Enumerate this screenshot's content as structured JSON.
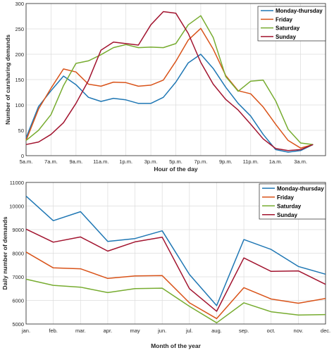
{
  "chart_data": [
    {
      "type": "line",
      "title": "",
      "xlabel": "Hour of the day",
      "ylabel": "Number of carsharing demands",
      "ylim": [
        0,
        300
      ],
      "yticks": [
        0,
        50,
        100,
        150,
        200,
        250,
        300
      ],
      "xticks": [
        "5a.m.",
        "7a.m.",
        "9a.m.",
        "11a.m.",
        "1p.m.",
        "3p.m.",
        "5p.m.",
        "7p.m.",
        "9p.m.",
        "11p.m.",
        "1a.m.",
        "3a.m."
      ],
      "x": [
        5,
        6,
        7,
        8,
        9,
        10,
        11,
        12,
        13,
        14,
        15,
        16,
        17,
        18,
        19,
        20,
        21,
        22,
        23,
        24,
        25,
        26,
        27,
        28
      ],
      "grid": true,
      "legend_position": "top-right",
      "series": [
        {
          "name": "Monday-thursday",
          "color": "#1f77b4",
          "values": [
            35,
            97,
            128,
            157,
            140,
            115,
            107,
            113,
            110,
            103,
            103,
            115,
            145,
            183,
            200,
            172,
            135,
            103,
            78,
            42,
            12,
            7,
            10,
            22
          ]
        },
        {
          "name": "Friday",
          "color": "#d95319",
          "values": [
            30,
            92,
            133,
            171,
            165,
            141,
            137,
            145,
            144,
            137,
            139,
            149,
            186,
            228,
            251,
            210,
            158,
            128,
            122,
            96,
            62,
            30,
            15,
            22
          ]
        },
        {
          "name": "Saturday",
          "color": "#77ac30",
          "values": [
            30,
            50,
            81,
            138,
            182,
            187,
            199,
            213,
            219,
            213,
            214,
            213,
            221,
            258,
            276,
            233,
            156,
            127,
            147,
            149,
            108,
            52,
            25,
            22
          ]
        },
        {
          "name": "Sunday",
          "color": "#a2142f",
          "values": [
            22,
            27,
            42,
            65,
            103,
            148,
            208,
            224,
            221,
            218,
            258,
            284,
            281,
            241,
            184,
            141,
            111,
            90,
            62,
            33,
            14,
            10,
            12,
            22
          ]
        }
      ]
    },
    {
      "type": "line",
      "title": "",
      "xlabel": "Month of the year",
      "ylabel": "Daily number of demands",
      "ylim": [
        5000,
        11000
      ],
      "yticks": [
        5000,
        6000,
        7000,
        8000,
        9000,
        10000,
        11000
      ],
      "categories": [
        "jan.",
        "feb.",
        "mar.",
        "apr.",
        "may",
        "jun.",
        "jul.",
        "aug.",
        "sep.",
        "oct.",
        "nov.",
        "dec."
      ],
      "grid": true,
      "legend_position": "top-right",
      "series": [
        {
          "name": "Monday-thursday",
          "color": "#1f77b4",
          "values": [
            10420,
            9380,
            9760,
            8500,
            8620,
            8950,
            7100,
            5780,
            8580,
            8160,
            7440,
            7110
          ]
        },
        {
          "name": "Friday",
          "color": "#d95319",
          "values": [
            8050,
            7380,
            7340,
            6930,
            7040,
            7050,
            5900,
            5230,
            6540,
            6060,
            5880,
            6080
          ]
        },
        {
          "name": "Saturday",
          "color": "#77ac30",
          "values": [
            6900,
            6640,
            6560,
            6330,
            6500,
            6520,
            5750,
            5050,
            5900,
            5520,
            5380,
            5400
          ]
        },
        {
          "name": "Sunday",
          "color": "#a2142f",
          "values": [
            9020,
            8470,
            8690,
            8090,
            8480,
            8680,
            6500,
            5540,
            7800,
            7230,
            7250,
            6680
          ]
        }
      ]
    }
  ]
}
